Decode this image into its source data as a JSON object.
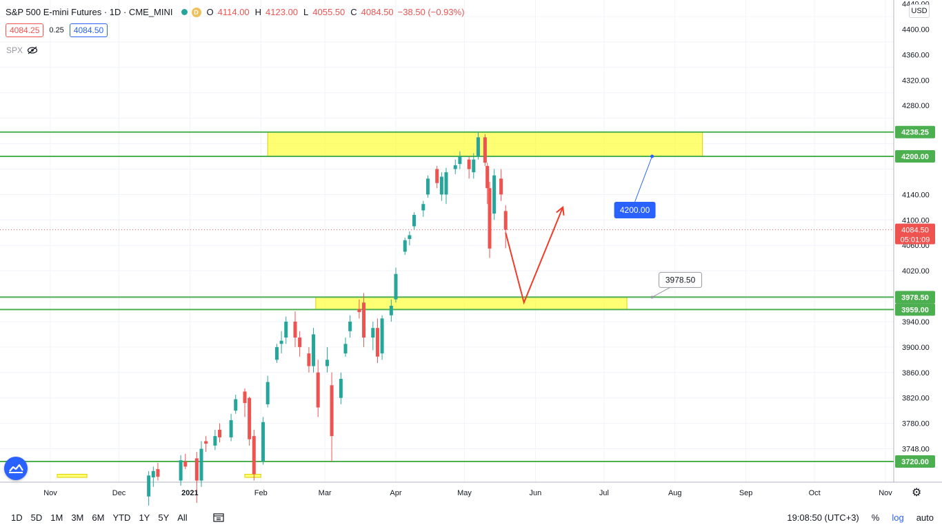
{
  "header": {
    "title": "S&P 500 E-mini Futures · 1D · CME_MINI",
    "interval_badge": "D",
    "ohlc": [
      {
        "k": "O",
        "v": "4114.00"
      },
      {
        "k": "H",
        "v": "4123.00"
      },
      {
        "k": "L",
        "v": "4055.50"
      },
      {
        "k": "C",
        "v": "4084.50"
      }
    ],
    "change": "−38.50 (−0.93%)",
    "sell_price": "4084.25",
    "spread": "0.25",
    "buy_price": "4084.50",
    "compare_symbol": "SPX",
    "currency": "USD"
  },
  "colors": {
    "up": "#26a69a",
    "down": "#ef5350",
    "level": "#4caf50",
    "zone": "#ffff00",
    "arrow": "#f23a27",
    "callout": "#2962ff"
  },
  "chart_data": {
    "type": "candlestick",
    "yaxis": {
      "range": [
        3700,
        4450
      ],
      "ticks": [
        "4440.00",
        "4400.00",
        "4360.00",
        "4320.00",
        "4280.00",
        "4140.00",
        "4100.00",
        "4060.00",
        "4020.00",
        "3940.00",
        "3900.00",
        "3860.00",
        "3820.00",
        "3780.00",
        "3748.00"
      ]
    },
    "xaxis": {
      "ticks": [
        {
          "label": "Nov",
          "date": "2020-11-01"
        },
        {
          "label": "Dec",
          "date": "2020-12-01"
        },
        {
          "label": "2021",
          "date": "2021-01-01"
        },
        {
          "label": "Feb",
          "date": "2021-02-01"
        },
        {
          "label": "Mar",
          "date": "2021-03-01"
        },
        {
          "label": "Apr",
          "date": "2021-04-01"
        },
        {
          "label": "May",
          "date": "2021-05-01"
        },
        {
          "label": "Jun",
          "date": "2021-06-01"
        },
        {
          "label": "Jul",
          "date": "2021-07-01"
        },
        {
          "label": "Aug",
          "date": "2021-08-01"
        },
        {
          "label": "Sep",
          "date": "2021-09-01"
        },
        {
          "label": "Oct",
          "date": "2021-10-01"
        },
        {
          "label": "Nov",
          "date": "2021-11-01"
        }
      ]
    },
    "candles": [
      {
        "d": "2020-12-14",
        "o": 3665,
        "h": 3705,
        "l": 3650,
        "c": 3698
      },
      {
        "d": "2020-12-16",
        "o": 3695,
        "h": 3712,
        "l": 3680,
        "c": 3705
      },
      {
        "d": "2020-12-18",
        "o": 3708,
        "h": 3718,
        "l": 3690,
        "c": 3696
      },
      {
        "d": "2020-12-28",
        "o": 3690,
        "h": 3730,
        "l": 3682,
        "c": 3722
      },
      {
        "d": "2020-12-30",
        "o": 3720,
        "h": 3732,
        "l": 3708,
        "c": 3712
      },
      {
        "d": "2021-01-04",
        "o": 3725,
        "h": 3735,
        "l": 3655,
        "c": 3690
      },
      {
        "d": "2021-01-06",
        "o": 3690,
        "h": 3752,
        "l": 3680,
        "c": 3740
      },
      {
        "d": "2021-01-08",
        "o": 3752,
        "h": 3760,
        "l": 3735,
        "c": 3748
      },
      {
        "d": "2021-01-12",
        "o": 3745,
        "h": 3770,
        "l": 3738,
        "c": 3760
      },
      {
        "d": "2021-01-14",
        "o": 3770,
        "h": 3780,
        "l": 3750,
        "c": 3758
      },
      {
        "d": "2021-01-19",
        "o": 3758,
        "h": 3795,
        "l": 3752,
        "c": 3785
      },
      {
        "d": "2021-01-21",
        "o": 3800,
        "h": 3825,
        "l": 3795,
        "c": 3818
      },
      {
        "d": "2021-01-25",
        "o": 3830,
        "h": 3835,
        "l": 3790,
        "c": 3812
      },
      {
        "d": "2021-01-27",
        "o": 3820,
        "h": 3822,
        "l": 3745,
        "c": 3755
      },
      {
        "d": "2021-01-29",
        "o": 3760,
        "h": 3770,
        "l": 3690,
        "c": 3700
      },
      {
        "d": "2021-02-02",
        "o": 3720,
        "h": 3790,
        "l": 3715,
        "c": 3782
      },
      {
        "d": "2021-02-04",
        "o": 3810,
        "h": 3855,
        "l": 3805,
        "c": 3845
      },
      {
        "d": "2021-02-08",
        "o": 3880,
        "h": 3905,
        "l": 3875,
        "c": 3900
      },
      {
        "d": "2021-02-10",
        "o": 3905,
        "h": 3925,
        "l": 3890,
        "c": 3910
      },
      {
        "d": "2021-02-12",
        "o": 3915,
        "h": 3948,
        "l": 3905,
        "c": 3940
      },
      {
        "d": "2021-02-16",
        "o": 3940,
        "h": 3956,
        "l": 3900,
        "c": 3915
      },
      {
        "d": "2021-02-18",
        "o": 3915,
        "h": 3925,
        "l": 3885,
        "c": 3900
      },
      {
        "d": "2021-02-22",
        "o": 3890,
        "h": 3900,
        "l": 3860,
        "c": 3870
      },
      {
        "d": "2021-02-24",
        "o": 3870,
        "h": 3930,
        "l": 3860,
        "c": 3920
      },
      {
        "d": "2021-02-26",
        "o": 3860,
        "h": 3880,
        "l": 3790,
        "c": 3805
      },
      {
        "d": "2021-03-02",
        "o": 3870,
        "h": 3900,
        "l": 3860,
        "c": 3880
      },
      {
        "d": "2021-03-04",
        "o": 3840,
        "h": 3860,
        "l": 3720,
        "c": 3760
      },
      {
        "d": "2021-03-08",
        "o": 3820,
        "h": 3860,
        "l": 3810,
        "c": 3850
      },
      {
        "d": "2021-03-10",
        "o": 3890,
        "h": 3915,
        "l": 3885,
        "c": 3905
      },
      {
        "d": "2021-03-12",
        "o": 3925,
        "h": 3950,
        "l": 3915,
        "c": 3940
      },
      {
        "d": "2021-03-16",
        "o": 3960,
        "h": 3975,
        "l": 3945,
        "c": 3955
      },
      {
        "d": "2021-03-18",
        "o": 3970,
        "h": 3985,
        "l": 3900,
        "c": 3915
      },
      {
        "d": "2021-03-22",
        "o": 3915,
        "h": 3940,
        "l": 3895,
        "c": 3930
      },
      {
        "d": "2021-03-24",
        "o": 3930,
        "h": 3945,
        "l": 3875,
        "c": 3885
      },
      {
        "d": "2021-03-26",
        "o": 3890,
        "h": 3950,
        "l": 3880,
        "c": 3945
      },
      {
        "d": "2021-03-30",
        "o": 3950,
        "h": 3975,
        "l": 3940,
        "c": 3965
      },
      {
        "d": "2021-04-01",
        "o": 3975,
        "h": 4025,
        "l": 3970,
        "c": 4015
      },
      {
        "d": "2021-04-05",
        "o": 4050,
        "h": 4072,
        "l": 4045,
        "c": 4068
      },
      {
        "d": "2021-04-07",
        "o": 4070,
        "h": 4082,
        "l": 4060,
        "c": 4076
      },
      {
        "d": "2021-04-09",
        "o": 4090,
        "h": 4112,
        "l": 4085,
        "c": 4108
      },
      {
        "d": "2021-04-13",
        "o": 4115,
        "h": 4130,
        "l": 4105,
        "c": 4125
      },
      {
        "d": "2021-04-15",
        "o": 4140,
        "h": 4170,
        "l": 4135,
        "c": 4165
      },
      {
        "d": "2021-04-19",
        "o": 4180,
        "h": 4185,
        "l": 4150,
        "c": 4158
      },
      {
        "d": "2021-04-21",
        "o": 4140,
        "h": 4175,
        "l": 4130,
        "c": 4168
      },
      {
        "d": "2021-04-23",
        "o": 4140,
        "h": 4182,
        "l": 4125,
        "c": 4175
      },
      {
        "d": "2021-04-27",
        "o": 4180,
        "h": 4195,
        "l": 4172,
        "c": 4186
      },
      {
        "d": "2021-04-29",
        "o": 4188,
        "h": 4208,
        "l": 4180,
        "c": 4200
      },
      {
        "d": "2021-05-03",
        "o": 4195,
        "h": 4200,
        "l": 4165,
        "c": 4180
      },
      {
        "d": "2021-05-05",
        "o": 4175,
        "h": 4205,
        "l": 4165,
        "c": 4195
      },
      {
        "d": "2021-05-07",
        "o": 4200,
        "h": 4238,
        "l": 4195,
        "c": 4230
      },
      {
        "d": "2021-05-10",
        "o": 4230,
        "h": 4235,
        "l": 4185,
        "c": 4190
      },
      {
        "d": "2021-05-11",
        "o": 4185,
        "h": 4190,
        "l": 4125,
        "c": 4150
      },
      {
        "d": "2021-05-12",
        "o": 4150,
        "h": 4160,
        "l": 4040,
        "c": 4055
      },
      {
        "d": "2021-05-14",
        "o": 4110,
        "h": 4180,
        "l": 4100,
        "c": 4170
      },
      {
        "d": "2021-05-17",
        "o": 4165,
        "h": 4180,
        "l": 4130,
        "c": 4140
      },
      {
        "d": "2021-05-19",
        "o": 4114,
        "h": 4123,
        "l": 4055.5,
        "c": 4084.5
      }
    ],
    "horizontal_levels": [
      {
        "price": 4238.25,
        "label": "4238.25"
      },
      {
        "price": 4200.0,
        "label": "4200.00"
      },
      {
        "price": 3978.5,
        "label": "3978.50"
      },
      {
        "price": 3959.0,
        "label": "3959.00"
      },
      {
        "price": 3720.0,
        "label": "3720.00"
      }
    ],
    "zones": [
      {
        "from": "2021-02-04",
        "to": "2021-08-13",
        "low": 4200.0,
        "high": 4238.25
      },
      {
        "from": "2021-02-25",
        "to": "2021-07-11",
        "low": 3959.0,
        "high": 3978.5
      },
      {
        "from": "2020-11-04",
        "to": "2020-11-17",
        "low": 3695,
        "high": 3700
      },
      {
        "from": "2021-01-25",
        "to": "2021-02-01",
        "low": 3695,
        "high": 3700
      }
    ],
    "current_price": {
      "price": 4084.5,
      "label": "4084.50",
      "countdown": "05:01:09"
    },
    "arrow_path": [
      {
        "d": "2021-05-19",
        "p": 4080
      },
      {
        "d": "2021-05-27",
        "p": 3970
      },
      {
        "d": "2021-06-13",
        "p": 4120
      }
    ],
    "callouts": [
      {
        "text": "4200.00",
        "anchor_date": "2021-07-22",
        "anchor_price": 4200.0,
        "style": "filled"
      },
      {
        "text": "3978.50",
        "anchor_date": "2021-07-22",
        "anchor_price": 3978.5,
        "style": "outline"
      }
    ]
  },
  "footer": {
    "ranges": [
      "1D",
      "5D",
      "1M",
      "3M",
      "6M",
      "YTD",
      "1Y",
      "5Y",
      "All"
    ],
    "time": "19:08:50 (UTC+3)",
    "percent": "%",
    "log": "log",
    "auto": "auto"
  }
}
